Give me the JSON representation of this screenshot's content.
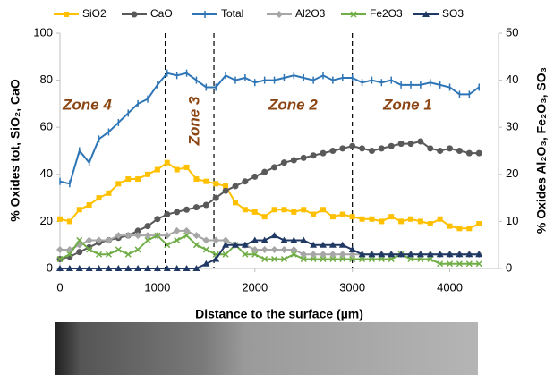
{
  "chart_data": {
    "type": "line",
    "x_label": "Distance to the surface (µm)",
    "y_label": "% Oxides tot, SiO₂, CaO",
    "y2_label": "% Oxides Al₂O₃, Fe₂O₃, SO₃",
    "xlim": [
      0,
      4500
    ],
    "xticks": [
      0,
      1000,
      2000,
      3000,
      4000
    ],
    "ylim": [
      0,
      100
    ],
    "yticks": [
      0,
      20,
      40,
      60,
      80,
      100
    ],
    "y2lim": [
      0,
      50
    ],
    "y2ticks": [
      0,
      10,
      20,
      30,
      40,
      50
    ],
    "vlines": [
      1080,
      1580,
      3000
    ],
    "annotations": [
      "Zone 4",
      "Zone 3",
      "Zone 2",
      "Zone 1"
    ],
    "x": [
      0,
      100,
      200,
      300,
      400,
      500,
      600,
      700,
      800,
      900,
      1000,
      1100,
      1200,
      1300,
      1400,
      1500,
      1600,
      1700,
      1800,
      1900,
      2000,
      2100,
      2200,
      2300,
      2400,
      2500,
      2600,
      2700,
      2800,
      2900,
      3000,
      3100,
      3200,
      3300,
      3400,
      3500,
      3600,
      3700,
      3800,
      3900,
      4000,
      4100,
      4200,
      4300
    ],
    "series": [
      {
        "name": "SiO2",
        "color": "#ffc000",
        "marker": "square",
        "values": [
          21,
          20,
          25,
          27,
          30,
          32,
          36,
          38,
          38,
          40,
          42,
          45,
          42,
          43,
          38,
          37,
          36,
          35,
          28,
          25,
          24,
          22,
          25,
          25,
          24,
          25,
          23,
          25,
          22,
          23,
          22,
          21,
          21,
          20,
          22,
          20,
          21,
          20,
          19,
          21,
          18,
          17,
          17,
          19
        ]
      },
      {
        "name": "CaO",
        "color": "#595959",
        "marker": "circle",
        "values": [
          4,
          5,
          7,
          9,
          11,
          12,
          13,
          14,
          16,
          18,
          21,
          23,
          24,
          25,
          26,
          27,
          30,
          33,
          35,
          37,
          39,
          41,
          43,
          45,
          46,
          47,
          48,
          49,
          50,
          51,
          52,
          51,
          50,
          51,
          52,
          53,
          53,
          54,
          51,
          50,
          51,
          50,
          49,
          49
        ]
      },
      {
        "name": "Total",
        "color": "#2e75b6",
        "marker": "dash",
        "values": [
          37,
          36,
          50,
          45,
          55,
          58,
          62,
          66,
          70,
          72,
          78,
          83,
          82,
          83,
          80,
          77,
          77,
          82,
          80,
          81,
          79,
          80,
          80,
          81,
          82,
          81,
          80,
          82,
          80,
          81,
          81,
          79,
          80,
          79,
          80,
          78,
          78,
          78,
          79,
          78,
          77,
          74,
          74,
          77
        ]
      },
      {
        "name": "Al2O3",
        "color": "#a6a6a6",
        "marker": "diamond",
        "axis": "y2",
        "values": [
          4,
          4,
          5,
          6,
          6,
          6,
          7,
          7,
          7,
          7,
          7,
          7,
          8,
          8,
          7,
          6,
          6,
          6,
          5,
          5,
          4,
          4,
          4,
          4,
          4,
          3,
          3,
          3,
          3,
          3,
          3,
          3,
          3,
          3,
          3,
          3,
          3,
          3,
          3,
          3,
          3,
          3,
          3,
          3
        ]
      },
      {
        "name": "Fe2O3",
        "color": "#70ad47",
        "marker": "x",
        "axis": "y2",
        "values": [
          2,
          3,
          6,
          4,
          3,
          3,
          4,
          3,
          4,
          6,
          7,
          5,
          6,
          7,
          5,
          4,
          3,
          3,
          5,
          3,
          3,
          2,
          2,
          2,
          3,
          2,
          2,
          2,
          2,
          2,
          2,
          2,
          2,
          2,
          2,
          3,
          2,
          2,
          2,
          1,
          1,
          1,
          1,
          1
        ]
      },
      {
        "name": "SO3",
        "color": "#203864",
        "marker": "triangle",
        "axis": "y2",
        "values": [
          0,
          0,
          0,
          0,
          0,
          0,
          0,
          0,
          0,
          0,
          0,
          0,
          0,
          0,
          0,
          1,
          2,
          5,
          5,
          5,
          6,
          6,
          7,
          6,
          6,
          6,
          5,
          5,
          5,
          5,
          4,
          3,
          3,
          3,
          3,
          3,
          3,
          3,
          3,
          3,
          3,
          3,
          3,
          3
        ]
      }
    ]
  }
}
